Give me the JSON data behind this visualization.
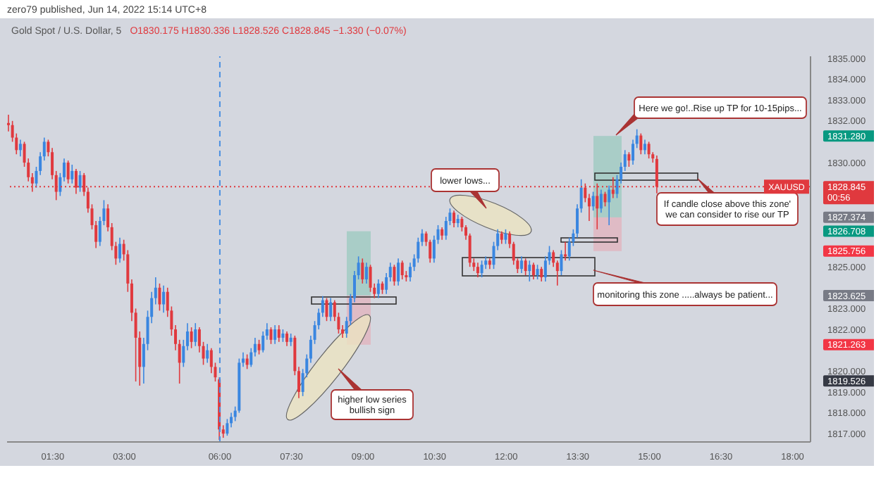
{
  "chart_data": {
    "type": "candlestick",
    "title": "Gold Spot / U.S. Dollar, 5",
    "subtitle": "O1830.175 H1830.336 L1828.526 C1828.845 −1.330 (−0.07%)",
    "categories": [
      null,
      null,
      null,
      null,
      null,
      null,
      null,
      null,
      null,
      null,
      null,
      "01:30",
      null,
      null,
      null,
      null,
      null,
      null,
      null,
      null,
      null,
      null,
      null,
      null,
      null,
      null,
      null,
      null,
      null,
      "03:00",
      null,
      null,
      null,
      null,
      null,
      null,
      null,
      null,
      null,
      null,
      null,
      null,
      null,
      null,
      null,
      null,
      null,
      null,
      null,
      null,
      null,
      null,
      null,
      "06:00",
      null,
      null,
      null,
      null,
      null,
      null,
      null,
      null,
      null,
      null,
      null,
      null,
      null,
      null,
      null,
      null,
      null,
      "07:30",
      null,
      null,
      null,
      null,
      null,
      null,
      null,
      null,
      null,
      null,
      null,
      null,
      null,
      null,
      null,
      null,
      null,
      "09:00",
      null,
      null,
      null,
      null,
      null,
      null,
      null,
      null,
      null,
      null,
      null,
      null,
      null,
      null,
      null,
      null,
      null,
      "10:30",
      null,
      null,
      null,
      null,
      null,
      null,
      null,
      null,
      null,
      null,
      null,
      null,
      null,
      null,
      null,
      null,
      null,
      "12:00",
      null,
      null,
      null,
      null,
      null,
      null,
      null,
      null,
      null,
      null,
      null,
      null,
      null,
      null,
      null,
      null,
      null,
      "13:30",
      null,
      null,
      null,
      null,
      null,
      null,
      null,
      null,
      null,
      null,
      null,
      null,
      null,
      null,
      null,
      null,
      null,
      "15:00",
      null,
      null,
      null,
      null,
      null,
      null,
      null,
      null,
      null,
      null,
      null,
      null,
      null,
      null,
      null,
      null,
      null,
      "16:30",
      null,
      null,
      null,
      null,
      null,
      null,
      null,
      null,
      null,
      null,
      null,
      null,
      null,
      null,
      null,
      null,
      null,
      "18:00",
      null,
      null,
      null,
      null
    ],
    "ohlc": [
      [
        1831.9,
        1832.3,
        1831.5,
        1831.8
      ],
      [
        1831.8,
        1832.0,
        1831.0,
        1831.2
      ],
      [
        1831.2,
        1831.4,
        1830.4,
        1830.6
      ],
      [
        1830.6,
        1831.1,
        1830.3,
        1830.9
      ],
      [
        1830.9,
        1831.0,
        1829.8,
        1830.0
      ],
      [
        1830.0,
        1830.2,
        1829.1,
        1829.3
      ],
      [
        1829.3,
        1829.5,
        1828.6,
        1829.0
      ],
      [
        1829.0,
        1829.8,
        1828.8,
        1829.6
      ],
      [
        1829.6,
        1830.5,
        1829.4,
        1830.3
      ],
      [
        1830.3,
        1831.2,
        1830.1,
        1831.0
      ],
      [
        1831.0,
        1831.1,
        1830.3,
        1830.5
      ],
      [
        1830.5,
        1830.7,
        1829.2,
        1829.4
      ],
      [
        1829.4,
        1829.6,
        1828.2,
        1828.6
      ],
      [
        1828.6,
        1829.5,
        1828.4,
        1829.3
      ],
      [
        1829.3,
        1830.2,
        1829.1,
        1830.0
      ],
      [
        1830.0,
        1830.1,
        1829.0,
        1829.2
      ],
      [
        1829.2,
        1829.9,
        1829.0,
        1829.6
      ],
      [
        1829.6,
        1829.7,
        1828.5,
        1828.8
      ],
      [
        1828.8,
        1829.6,
        1828.6,
        1829.4
      ],
      [
        1829.4,
        1829.5,
        1828.4,
        1828.6
      ],
      [
        1828.6,
        1828.8,
        1827.6,
        1827.8
      ],
      [
        1827.8,
        1828.0,
        1826.8,
        1827.0
      ],
      [
        1827.0,
        1827.2,
        1825.9,
        1826.2
      ],
      [
        1826.2,
        1827.4,
        1826.0,
        1827.2
      ],
      [
        1827.2,
        1828.2,
        1827.0,
        1827.8
      ],
      [
        1827.8,
        1828.0,
        1826.7,
        1826.9
      ],
      [
        1826.9,
        1827.1,
        1825.8,
        1826.0
      ],
      [
        1826.0,
        1826.2,
        1825.1,
        1825.4
      ],
      [
        1825.4,
        1826.4,
        1825.2,
        1826.1
      ],
      [
        1826.1,
        1826.3,
        1825.3,
        1825.6
      ],
      [
        1825.6,
        1825.8,
        1823.8,
        1824.2
      ],
      [
        1824.2,
        1824.4,
        1822.4,
        1822.8
      ],
      [
        1822.8,
        1823.0,
        1819.5,
        1821.6
      ],
      [
        1821.6,
        1821.9,
        1819.3,
        1820.2
      ],
      [
        1820.2,
        1821.6,
        1819.4,
        1821.3
      ],
      [
        1821.3,
        1822.9,
        1821.0,
        1822.6
      ],
      [
        1822.6,
        1823.8,
        1822.3,
        1823.5
      ],
      [
        1823.5,
        1824.5,
        1823.2,
        1824.0
      ],
      [
        1824.0,
        1824.2,
        1822.9,
        1823.2
      ],
      [
        1823.2,
        1824.1,
        1822.8,
        1823.8
      ],
      [
        1823.8,
        1824.0,
        1822.6,
        1822.9
      ],
      [
        1822.9,
        1823.1,
        1821.7,
        1822.0
      ],
      [
        1822.0,
        1822.2,
        1821.0,
        1821.3
      ],
      [
        1821.3,
        1821.5,
        1819.4,
        1820.4
      ],
      [
        1820.4,
        1821.5,
        1820.2,
        1821.2
      ],
      [
        1821.2,
        1822.3,
        1821.0,
        1821.9
      ],
      [
        1821.9,
        1822.1,
        1821.1,
        1821.4
      ],
      [
        1821.4,
        1822.3,
        1821.2,
        1822.0
      ],
      [
        1822.0,
        1822.1,
        1820.9,
        1821.2
      ],
      [
        1821.2,
        1821.4,
        1820.3,
        1820.6
      ],
      [
        1820.6,
        1821.3,
        1820.4,
        1821.0
      ],
      [
        1821.0,
        1821.1,
        1819.9,
        1820.2
      ],
      [
        1820.2,
        1820.4,
        1819.5,
        1819.7
      ],
      [
        1819.6,
        1819.7,
        1816.7,
        1817.2
      ],
      [
        1817.2,
        1817.4,
        1816.8,
        1817.0
      ],
      [
        1817.0,
        1817.7,
        1816.9,
        1817.5
      ],
      [
        1817.5,
        1818.0,
        1817.3,
        1817.8
      ],
      [
        1817.8,
        1818.3,
        1817.6,
        1818.1
      ],
      [
        1818.1,
        1820.6,
        1818.0,
        1820.4
      ],
      [
        1820.4,
        1820.9,
        1820.2,
        1820.6
      ],
      [
        1820.6,
        1820.8,
        1820.1,
        1820.3
      ],
      [
        1820.3,
        1821.1,
        1820.2,
        1820.9
      ],
      [
        1820.9,
        1821.6,
        1820.7,
        1821.3
      ],
      [
        1821.3,
        1821.5,
        1820.8,
        1821.0
      ],
      [
        1821.0,
        1821.9,
        1820.9,
        1821.7
      ],
      [
        1821.7,
        1822.3,
        1821.5,
        1822.0
      ],
      [
        1822.0,
        1822.1,
        1821.3,
        1821.5
      ],
      [
        1821.5,
        1822.2,
        1821.3,
        1822.0
      ],
      [
        1822.0,
        1822.2,
        1821.4,
        1821.6
      ],
      [
        1821.6,
        1822.0,
        1821.4,
        1821.8
      ],
      [
        1821.8,
        1821.9,
        1821.2,
        1821.4
      ],
      [
        1821.4,
        1821.8,
        1821.2,
        1821.6
      ],
      [
        1821.6,
        1821.7,
        1819.8,
        1820.0
      ],
      [
        1820.0,
        1820.2,
        1818.7,
        1819.0
      ],
      [
        1819.0,
        1820.1,
        1818.8,
        1819.9
      ],
      [
        1819.9,
        1820.8,
        1819.7,
        1820.6
      ],
      [
        1820.6,
        1821.7,
        1820.4,
        1821.5
      ],
      [
        1821.5,
        1822.4,
        1821.3,
        1822.2
      ],
      [
        1822.2,
        1823.0,
        1822.0,
        1822.8
      ],
      [
        1822.8,
        1823.6,
        1822.6,
        1823.4
      ],
      [
        1823.4,
        1823.5,
        1822.4,
        1822.6
      ],
      [
        1822.6,
        1823.5,
        1822.4,
        1823.3
      ],
      [
        1823.3,
        1823.4,
        1822.4,
        1822.6
      ],
      [
        1822.6,
        1822.8,
        1821.8,
        1822.0
      ],
      [
        1822.0,
        1822.2,
        1821.6,
        1821.8
      ],
      [
        1821.8,
        1822.6,
        1821.6,
        1822.4
      ],
      [
        1822.4,
        1823.7,
        1822.2,
        1823.5
      ],
      [
        1823.5,
        1824.8,
        1823.3,
        1824.6
      ],
      [
        1824.6,
        1825.5,
        1824.4,
        1825.2
      ],
      [
        1825.2,
        1825.4,
        1824.2,
        1824.4
      ],
      [
        1824.4,
        1825.2,
        1824.2,
        1825.0
      ],
      [
        1825.0,
        1825.1,
        1823.8,
        1824.0
      ],
      [
        1824.0,
        1824.2,
        1823.5,
        1823.7
      ],
      [
        1823.7,
        1824.4,
        1823.5,
        1824.2
      ],
      [
        1824.2,
        1824.3,
        1823.7,
        1823.9
      ],
      [
        1823.9,
        1824.7,
        1823.7,
        1824.5
      ],
      [
        1824.5,
        1825.2,
        1824.3,
        1825.0
      ],
      [
        1825.0,
        1825.1,
        1824.1,
        1824.3
      ],
      [
        1824.3,
        1825.4,
        1824.1,
        1825.2
      ],
      [
        1825.2,
        1825.3,
        1824.4,
        1824.6
      ],
      [
        1824.6,
        1824.8,
        1824.3,
        1824.5
      ],
      [
        1824.5,
        1825.2,
        1824.3,
        1825.0
      ],
      [
        1825.0,
        1825.6,
        1824.8,
        1825.4
      ],
      [
        1825.4,
        1826.4,
        1825.2,
        1826.2
      ],
      [
        1826.2,
        1826.8,
        1826.0,
        1826.6
      ],
      [
        1826.6,
        1826.7,
        1826.0,
        1826.2
      ],
      [
        1826.2,
        1826.3,
        1825.2,
        1825.4
      ],
      [
        1825.4,
        1826.5,
        1825.2,
        1826.3
      ],
      [
        1826.3,
        1827.0,
        1826.1,
        1826.8
      ],
      [
        1826.8,
        1826.9,
        1826.3,
        1826.5
      ],
      [
        1826.5,
        1827.4,
        1826.3,
        1827.2
      ],
      [
        1827.2,
        1827.8,
        1827.0,
        1827.6
      ],
      [
        1827.6,
        1827.7,
        1826.9,
        1827.1
      ],
      [
        1827.1,
        1827.5,
        1826.9,
        1827.3
      ],
      [
        1827.3,
        1827.4,
        1826.7,
        1826.9
      ],
      [
        1826.9,
        1827.0,
        1826.3,
        1826.5
      ],
      [
        1826.5,
        1826.6,
        1825.0,
        1825.2
      ],
      [
        1825.2,
        1825.4,
        1824.8,
        1825.0
      ],
      [
        1825.0,
        1825.2,
        1824.5,
        1824.7
      ],
      [
        1824.7,
        1825.3,
        1824.5,
        1825.1
      ],
      [
        1825.1,
        1825.5,
        1824.9,
        1825.3
      ],
      [
        1825.3,
        1825.4,
        1824.9,
        1825.1
      ],
      [
        1825.1,
        1826.2,
        1824.9,
        1826.0
      ],
      [
        1826.0,
        1826.8,
        1825.8,
        1826.6
      ],
      [
        1826.6,
        1826.7,
        1826.1,
        1826.3
      ],
      [
        1826.3,
        1826.8,
        1826.1,
        1826.6
      ],
      [
        1826.6,
        1826.7,
        1825.9,
        1826.1
      ],
      [
        1826.1,
        1826.2,
        1825.1,
        1825.3
      ],
      [
        1825.3,
        1825.4,
        1824.7,
        1824.9
      ],
      [
        1824.9,
        1825.5,
        1824.7,
        1825.3
      ],
      [
        1825.3,
        1825.4,
        1824.6,
        1824.8
      ],
      [
        1824.8,
        1825.3,
        1824.3,
        1825.1
      ],
      [
        1825.1,
        1825.2,
        1824.4,
        1824.6
      ],
      [
        1824.6,
        1825.1,
        1824.4,
        1824.9
      ],
      [
        1824.9,
        1825.0,
        1824.3,
        1824.5
      ],
      [
        1824.5,
        1825.5,
        1824.3,
        1825.3
      ],
      [
        1825.3,
        1826.0,
        1825.1,
        1825.7
      ],
      [
        1825.7,
        1825.8,
        1825.0,
        1825.2
      ],
      [
        1825.2,
        1825.3,
        1824.1,
        1824.8
      ],
      [
        1824.8,
        1825.8,
        1824.6,
        1825.6
      ],
      [
        1825.6,
        1826.2,
        1825.3,
        1825.5
      ],
      [
        1825.5,
        1826.4,
        1825.3,
        1826.2
      ],
      [
        1826.2,
        1826.8,
        1826.0,
        1826.6
      ],
      [
        1826.6,
        1828.0,
        1826.4,
        1827.8
      ],
      [
        1827.8,
        1829.2,
        1827.6,
        1828.8
      ],
      [
        1828.8,
        1829.0,
        1828.1,
        1828.3
      ],
      [
        1828.3,
        1828.5,
        1827.2,
        1827.9
      ],
      [
        1827.9,
        1828.6,
        1827.7,
        1828.4
      ],
      [
        1828.4,
        1829.0,
        1826.8,
        1827.8
      ],
      [
        1827.8,
        1828.7,
        1827.6,
        1828.5
      ],
      [
        1828.5,
        1828.6,
        1827.9,
        1828.1
      ],
      [
        1828.1,
        1828.9,
        1827.0,
        1828.7
      ],
      [
        1828.7,
        1829.3,
        1828.3,
        1828.5
      ],
      [
        1828.5,
        1829.4,
        1828.3,
        1829.2
      ],
      [
        1829.2,
        1830.0,
        1829.0,
        1829.8
      ],
      [
        1829.8,
        1830.6,
        1829.6,
        1830.4
      ],
      [
        1830.4,
        1830.5,
        1829.8,
        1830.1
      ],
      [
        1830.1,
        1831.1,
        1829.9,
        1830.9
      ],
      [
        1830.9,
        1831.6,
        1830.7,
        1831.3
      ],
      [
        1831.3,
        1831.4,
        1830.4,
        1830.6
      ],
      [
        1830.6,
        1831.1,
        1830.4,
        1830.9
      ],
      [
        1830.9,
        1831.0,
        1830.2,
        1830.4
      ],
      [
        1830.4,
        1830.5,
        1830.0,
        1830.2
      ],
      [
        1830.175,
        1830.336,
        1828.526,
        1828.845
      ],
      null,
      null,
      null,
      null,
      null,
      null,
      null,
      null,
      null,
      null,
      null,
      null,
      null,
      null,
      null,
      null,
      null,
      null,
      null,
      null,
      null,
      null,
      null,
      null,
      null,
      null,
      null,
      null,
      null,
      null,
      null,
      null,
      null,
      null,
      null,
      null,
      null,
      null
    ],
    "colors": [
      "#e0393e",
      "#e0393e",
      "#e0393e",
      "#3a86e0",
      "#e0393e",
      "#e0393e",
      "#e0393e",
      "#3a86e0",
      "#3a86e0",
      "#3a86e0",
      "#e0393e",
      "#e0393e",
      "#e0393e",
      "#3a86e0",
      "#3a86e0",
      "#e0393e",
      "#3a86e0",
      "#e0393e",
      "#3a86e0",
      "#e0393e",
      "#e0393e",
      "#e0393e",
      "#e0393e",
      "#3a86e0",
      "#3a86e0",
      "#e0393e",
      "#e0393e",
      "#e0393e",
      "#3a86e0",
      "#e0393e",
      "#e0393e",
      "#e0393e",
      "#e0393e",
      "#e0393e",
      "#3a86e0",
      "#3a86e0",
      "#3a86e0",
      "#3a86e0",
      "#e0393e",
      "#3a86e0",
      "#e0393e",
      "#e0393e",
      "#e0393e",
      "#e0393e",
      "#3a86e0",
      "#3a86e0",
      "#e0393e",
      "#3a86e0",
      "#e0393e",
      "#e0393e",
      "#3a86e0",
      "#e0393e",
      "#e0393e",
      "#e0393e",
      "#e0393e",
      "#3a86e0",
      "#3a86e0",
      "#3a86e0",
      "#3a86e0",
      "#3a86e0",
      "#e0393e",
      "#3a86e0",
      "#3a86e0",
      "#e0393e",
      "#3a86e0",
      "#3a86e0",
      "#e0393e",
      "#3a86e0",
      "#e0393e",
      "#3a86e0",
      "#e0393e",
      "#3a86e0",
      "#e0393e",
      "#e0393e",
      "#3a86e0",
      "#3a86e0",
      "#3a86e0",
      "#3a86e0",
      "#3a86e0",
      "#3a86e0",
      "#e0393e",
      "#3a86e0",
      "#e0393e",
      "#e0393e",
      "#e0393e",
      "#3a86e0",
      "#3a86e0",
      "#3a86e0",
      "#3a86e0",
      "#e0393e",
      "#3a86e0",
      "#e0393e",
      "#e0393e",
      "#3a86e0",
      "#e0393e",
      "#3a86e0",
      "#3a86e0",
      "#e0393e",
      "#3a86e0",
      "#e0393e",
      "#e0393e",
      "#3a86e0",
      "#3a86e0",
      "#3a86e0",
      "#3a86e0",
      "#e0393e",
      "#e0393e",
      "#3a86e0",
      "#3a86e0",
      "#e0393e",
      "#3a86e0",
      "#3a86e0",
      "#e0393e",
      "#3a86e0",
      "#e0393e",
      "#e0393e",
      "#e0393e",
      "#e0393e",
      "#e0393e",
      "#3a86e0",
      "#3a86e0",
      "#e0393e",
      "#3a86e0",
      "#3a86e0",
      "#e0393e",
      "#3a86e0",
      "#e0393e",
      "#e0393e",
      "#e0393e",
      "#3a86e0",
      "#e0393e",
      "#3a86e0",
      "#e0393e",
      "#3a86e0",
      "#e0393e",
      "#3a86e0",
      "#3a86e0",
      "#e0393e",
      "#e0393e",
      "#3a86e0",
      "#e0393e",
      "#3a86e0",
      "#3a86e0",
      "#3a86e0",
      "#3a86e0",
      "#e0393e",
      "#e0393e",
      "#3a86e0",
      "#e0393e",
      "#3a86e0",
      "#e0393e",
      "#3a86e0",
      "#e0393e",
      "#3a86e0",
      "#3a86e0",
      "#3a86e0",
      "#e0393e",
      "#3a86e0",
      "#3a86e0",
      "#e0393e",
      "#3a86e0",
      "#e0393e",
      "#e0393e",
      "#e0393e",
      null,
      null,
      null,
      null,
      null,
      null,
      null,
      null,
      null,
      null,
      null,
      null,
      null,
      null,
      null,
      null,
      null,
      null,
      null,
      null,
      null,
      null,
      null,
      null,
      null,
      null,
      null,
      null,
      null,
      null,
      null,
      null,
      null,
      null,
      null,
      null,
      null,
      null
    ],
    "ylim": [
      1816.6,
      1835.1
    ],
    "yticks": [
      {
        "value": 1817,
        "label": "1817.000"
      },
      {
        "value": 1818,
        "label": "1818.000"
      },
      {
        "value": 1819,
        "label": "1819.000"
      },
      {
        "value": 1819.526,
        "label": "1819.526"
      },
      {
        "value": 1820,
        "label": "1820.000"
      },
      {
        "value": 1821.263,
        "label": "1821.263"
      },
      {
        "value": 1822,
        "label": "1822.000"
      },
      {
        "value": 1823,
        "label": "1823.000"
      },
      {
        "value": 1823.625,
        "label": "1823.625"
      },
      {
        "value": 1825,
        "label": "1825.000"
      },
      {
        "value": 1825.756,
        "label": "1825.756"
      },
      {
        "value": 1826.708,
        "label": "1826.708"
      },
      {
        "value": 1827.374,
        "label": "1827.374"
      },
      {
        "value": 1828.845,
        "label": "1828.845"
      },
      {
        "value": 1830,
        "label": "1830.000"
      },
      {
        "value": 1831.28,
        "label": "1831.280"
      },
      {
        "value": 1832,
        "label": "1832.000"
      },
      {
        "value": 1833,
        "label": "1833.000"
      },
      {
        "value": 1834,
        "label": "1834.000"
      },
      {
        "value": 1835,
        "label": "1835.000"
      }
    ],
    "ref_lines": [
      {
        "axis": "x",
        "value": "06:00",
        "color": "#4a90e2",
        "line_style": "dashed"
      },
      {
        "axis": "y",
        "value": 1828.845,
        "label": "XAUUSD",
        "color": "#e0393e",
        "line_style": "dotted"
      }
    ],
    "annotations": [
      "zero79 published, Jun 14, 2022 15:14 UTC+8",
      "Here we go!..Rise up TP for 10-15pips...",
      "lower lows...",
      "If candle close above this zone'\nwe can consider to rise our TP",
      "monitoring this zone .....always be patient...",
      "higher low series\nbullish sign",
      "00:56"
    ]
  }
}
